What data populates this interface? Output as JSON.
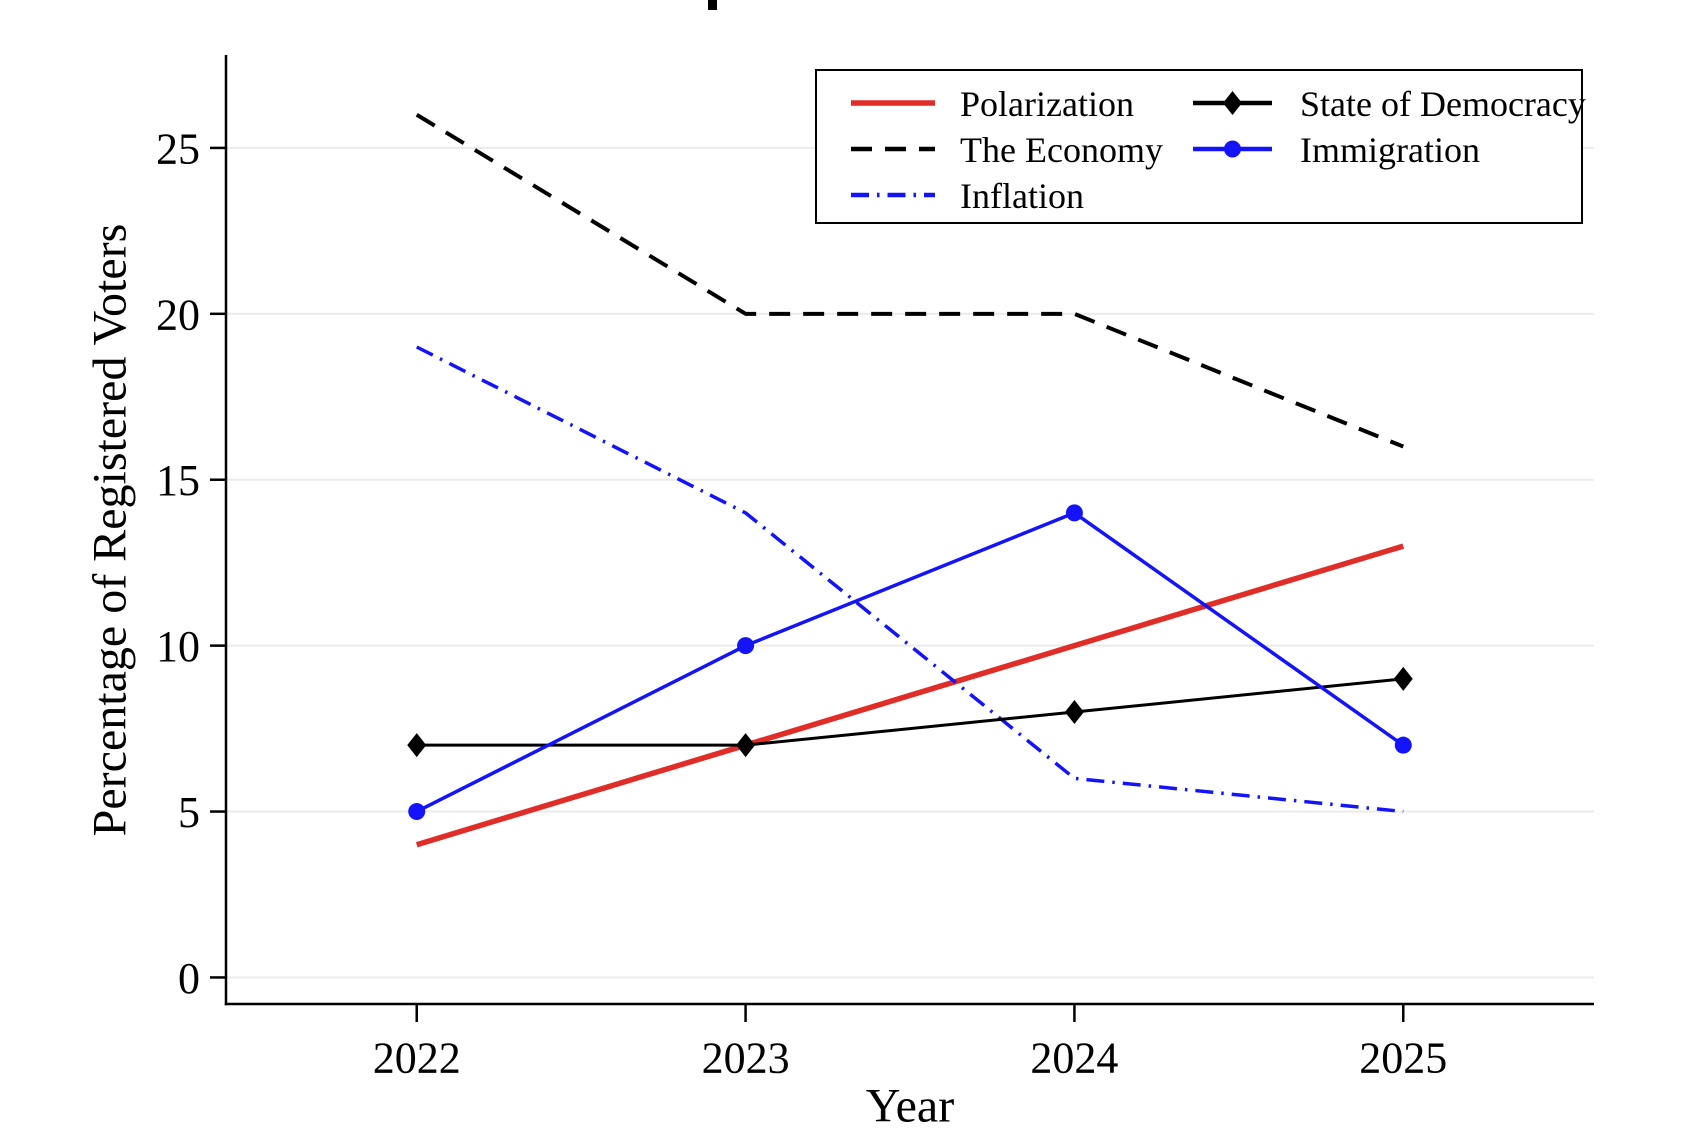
{
  "chart_data": {
    "type": "line",
    "title": "",
    "xlabel": "Year",
    "ylabel": "Percentage of Registered Voters",
    "x": [
      2022,
      2023,
      2024,
      2025
    ],
    "x_tick_labels": [
      "2022",
      "2023",
      "2024",
      "2025"
    ],
    "y_ticks": [
      0,
      5,
      10,
      15,
      20,
      25
    ],
    "y_tick_labels": [
      "0",
      "5",
      "10",
      "15",
      "20",
      "25"
    ],
    "xlim": [
      2021.42,
      2025.58
    ],
    "ylim": [
      -0.8,
      27.8
    ],
    "grid": "horizontal",
    "grid_color": "#ebebeb",
    "axis_color": "#000000",
    "background_color": "#ffffff",
    "legend_position": "top-right-inside",
    "series": [
      {
        "name": "Polarization",
        "values": [
          4,
          7,
          10,
          13
        ],
        "color": "#e12d28",
        "style": "solid",
        "marker": "none",
        "width": 5.5
      },
      {
        "name": "The Economy",
        "values": [
          26,
          20,
          20,
          16
        ],
        "color": "#000000",
        "style": "dashed",
        "marker": "none",
        "width": 4
      },
      {
        "name": "Inflation",
        "values": [
          19,
          14,
          6,
          5
        ],
        "color": "#1414fa",
        "style": "dashdot",
        "marker": "none",
        "width": 3.5
      },
      {
        "name": "State of Democracy",
        "values": [
          7,
          7,
          8,
          9
        ],
        "color": "#000000",
        "style": "solid",
        "marker": "diamond",
        "width": 3
      },
      {
        "name": "Immigration",
        "values": [
          5,
          10,
          14,
          7
        ],
        "color": "#1414fa",
        "style": "solid",
        "marker": "circle",
        "width": 3.5
      }
    ],
    "legend": {
      "columns": [
        [
          "Polarization",
          "The Economy",
          "Inflation"
        ],
        [
          "State of Democracy",
          "Immigration"
        ]
      ]
    }
  }
}
